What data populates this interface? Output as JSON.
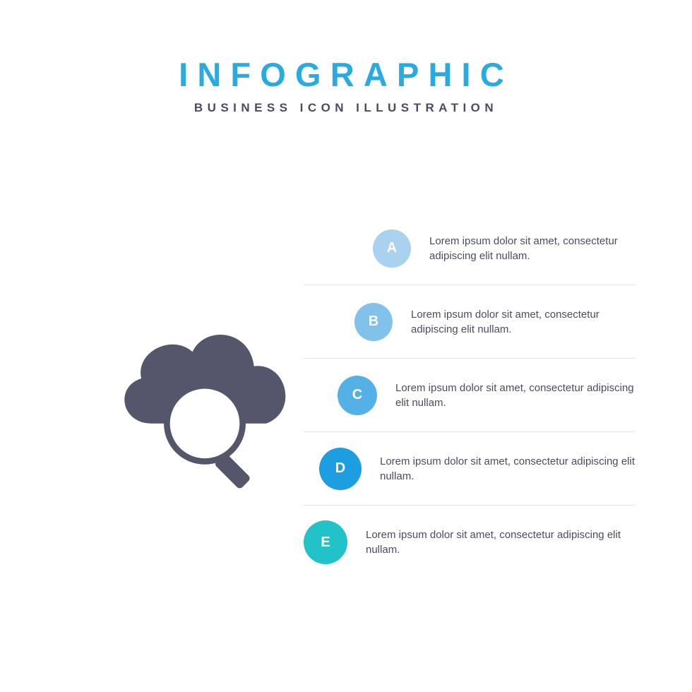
{
  "header": {
    "title": "INFOGRAPHIC",
    "title_color": "#29abe2",
    "title_fontsize": 47,
    "subtitle": "BUSINESS ICON ILLUSTRATION",
    "subtitle_color": "#4a4c62",
    "subtitle_fontsize": 17
  },
  "icon": {
    "name": "cloud-search-icon",
    "fill": "#54566c",
    "background": "#ffffff"
  },
  "steps_layout": {
    "badge_diameters": [
      54,
      54,
      56,
      60,
      62
    ],
    "badge_left_offsets": [
      98,
      72,
      48,
      22,
      0
    ],
    "badge_fontsize": 20,
    "text_color": "#4a4c62",
    "text_fontsize": 15,
    "text_lineheight": 21,
    "text_left_margin": 26,
    "divider_color": "#e5e5e8"
  },
  "steps": [
    {
      "letter": "A",
      "color": "#a9d2ef",
      "text": "Lorem ipsum dolor sit amet, consectetur adipiscing elit nullam."
    },
    {
      "letter": "B",
      "color": "#81c1ea",
      "text": "Lorem ipsum dolor sit amet, consectetur adipiscing elit nullam."
    },
    {
      "letter": "C",
      "color": "#55b0e6",
      "text": "Lorem ipsum dolor sit amet, consectetur adipiscing elit nullam."
    },
    {
      "letter": "D",
      "color": "#1d9ee0",
      "text": "Lorem ipsum dolor sit amet, consectetur adipiscing elit nullam."
    },
    {
      "letter": "E",
      "color": "#22c2c9",
      "text": "Lorem ipsum dolor sit amet, consectetur adipiscing elit nullam."
    }
  ]
}
